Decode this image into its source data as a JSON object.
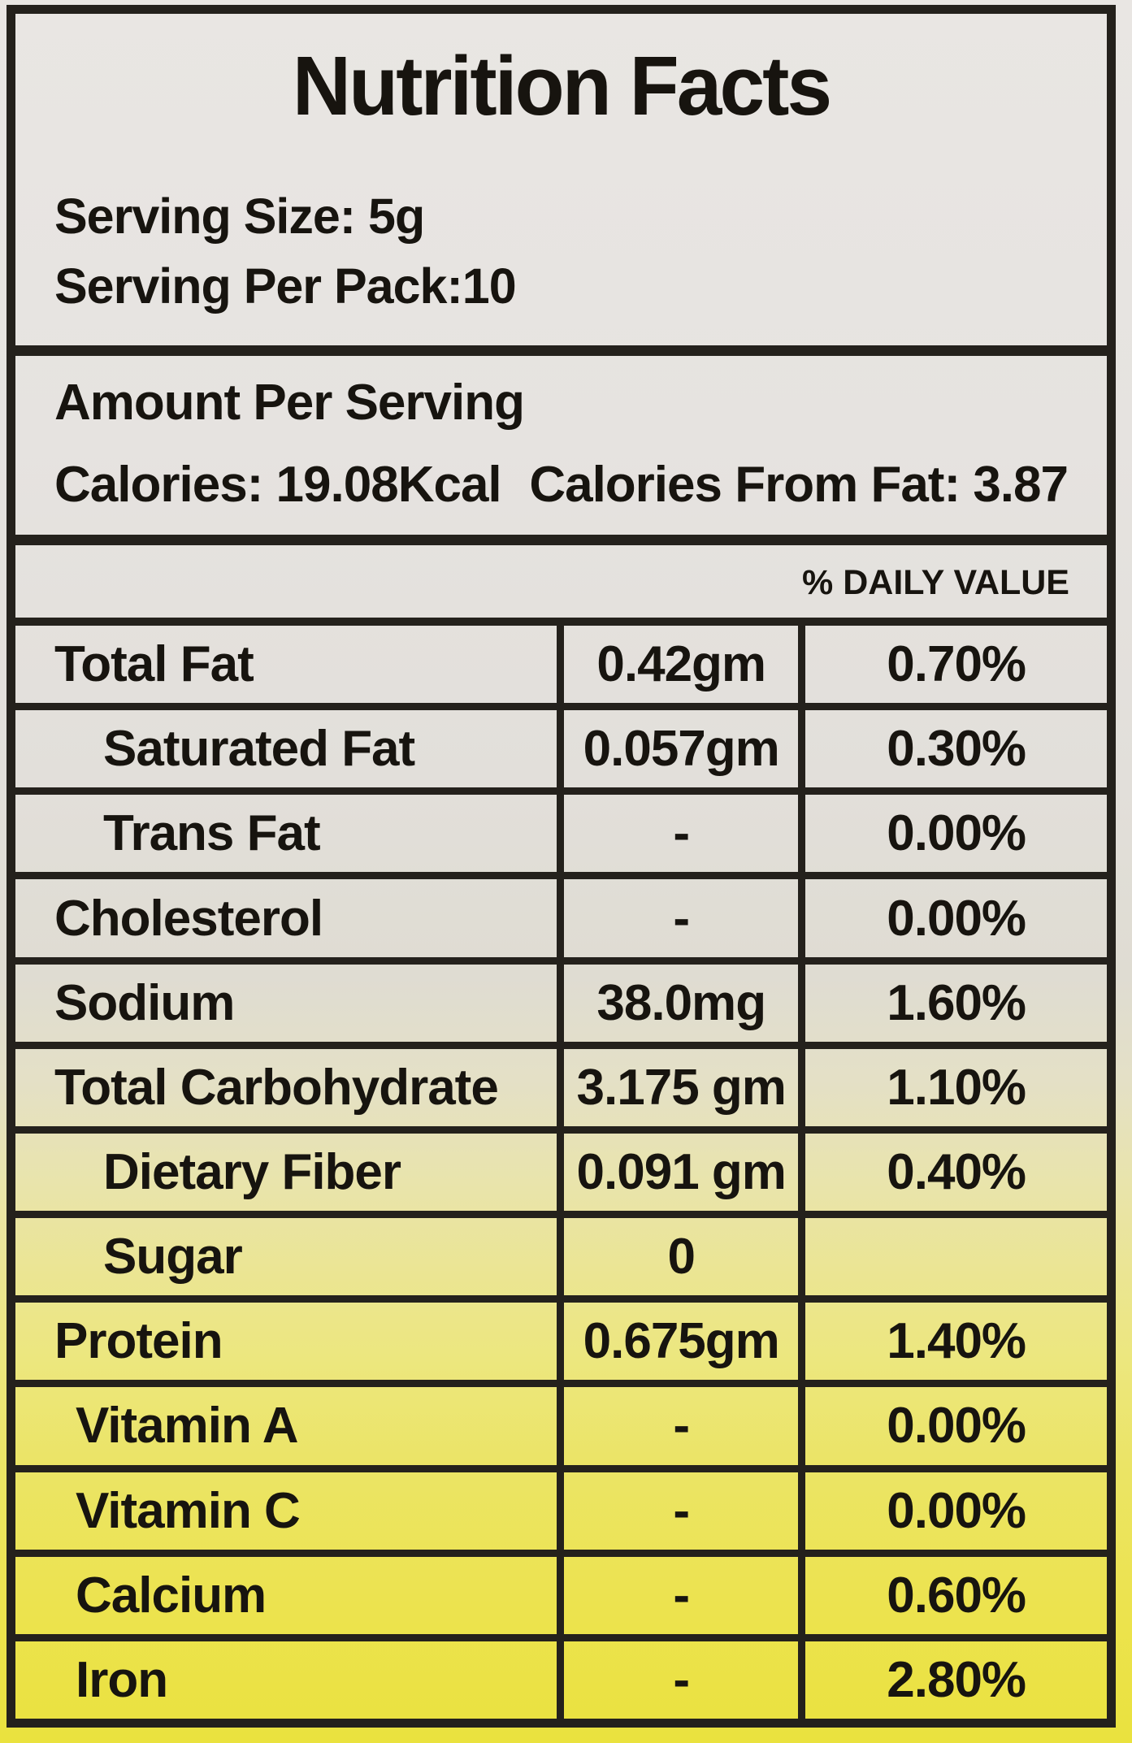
{
  "title": "Nutrition Facts",
  "serving": {
    "size_line": "Serving Size: 5g",
    "per_pack_line": "Serving Per Pack:10"
  },
  "amount_per_serving": "Amount Per Serving",
  "calories_line": "Calories: 19.08Kcal",
  "calories_from_fat_line": "Calories From Fat: 3.87",
  "daily_value_header": "% DAILY VALUE",
  "rows": [
    {
      "name": "Total Fat",
      "amount": "0.42gm",
      "daily_value": "0.70%",
      "indent": 0
    },
    {
      "name": "Saturated Fat",
      "amount": "0.057gm",
      "daily_value": "0.30%",
      "indent": 1
    },
    {
      "name": "Trans Fat",
      "amount": "-",
      "daily_value": "0.00%",
      "indent": 1
    },
    {
      "name": "Cholesterol",
      "amount": "-",
      "daily_value": "0.00%",
      "indent": 0
    },
    {
      "name": "Sodium",
      "amount": "38.0mg",
      "daily_value": "1.60%",
      "indent": 0
    },
    {
      "name": "Total Carbohydrate",
      "amount": "3.175 gm",
      "daily_value": "1.10%",
      "indent": 0
    },
    {
      "name": "Dietary Fiber",
      "amount": "0.091 gm",
      "daily_value": "0.40%",
      "indent": 1
    },
    {
      "name": "Sugar",
      "amount": "0",
      "daily_value": "",
      "indent": 1
    },
    {
      "name": "Protein",
      "amount": "0.675gm",
      "daily_value": "1.40%",
      "indent": 0
    },
    {
      "name": "Vitamin A",
      "amount": "-",
      "daily_value": "0.00%",
      "indent": 2
    },
    {
      "name": "Vitamin C",
      "amount": "-",
      "daily_value": "0.00%",
      "indent": 2
    },
    {
      "name": "Calcium",
      "amount": "-",
      "daily_value": "0.60%",
      "indent": 2
    },
    {
      "name": "Iron",
      "amount": "-",
      "daily_value": "2.80%",
      "indent": 2
    }
  ],
  "style": {
    "border_color": "#24211c",
    "text_color": "#17140f",
    "background_top": "#e9e6e3",
    "background_bottom": "#eae23e"
  }
}
